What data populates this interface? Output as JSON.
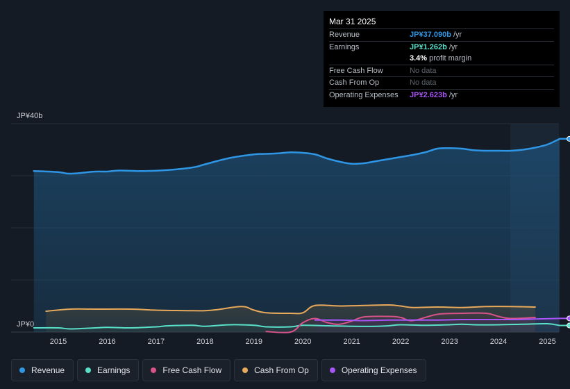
{
  "chart_data": {
    "type": "line",
    "title": "",
    "y_axis": {
      "min_label": "JP¥0",
      "max_label": "JP¥40b",
      "ylim": [
        0,
        40
      ]
    },
    "x_ticks": [
      "2015",
      "2016",
      "2017",
      "2018",
      "2019",
      "2020",
      "2021",
      "2022",
      "2023",
      "2024",
      "2025"
    ],
    "series": [
      {
        "name": "Revenue",
        "color": "#2f96e6",
        "points": [
          [
            2014.5,
            30.9
          ],
          [
            2015.0,
            30.7
          ],
          [
            2015.25,
            30.4
          ],
          [
            2015.75,
            30.8
          ],
          [
            2016.0,
            30.8
          ],
          [
            2016.25,
            31.0
          ],
          [
            2016.75,
            30.9
          ],
          [
            2017.25,
            31.1
          ],
          [
            2017.75,
            31.6
          ],
          [
            2018.0,
            32.2
          ],
          [
            2018.5,
            33.4
          ],
          [
            2019.0,
            34.1
          ],
          [
            2019.25,
            34.2
          ],
          [
            2019.5,
            34.3
          ],
          [
            2019.75,
            34.5
          ],
          [
            2020.0,
            34.4
          ],
          [
            2020.25,
            34.1
          ],
          [
            2020.5,
            33.3
          ],
          [
            2020.75,
            32.7
          ],
          [
            2021.0,
            32.3
          ],
          [
            2021.25,
            32.4
          ],
          [
            2021.5,
            32.8
          ],
          [
            2021.75,
            33.2
          ],
          [
            2022.0,
            33.6
          ],
          [
            2022.25,
            34.0
          ],
          [
            2022.5,
            34.5
          ],
          [
            2022.75,
            35.2
          ],
          [
            2023.0,
            35.3
          ],
          [
            2023.25,
            35.2
          ],
          [
            2023.5,
            34.9
          ],
          [
            2023.75,
            34.8
          ],
          [
            2024.0,
            34.8
          ],
          [
            2024.25,
            34.8
          ],
          [
            2024.5,
            35.0
          ],
          [
            2024.75,
            35.4
          ],
          [
            2025.0,
            36.0
          ],
          [
            2025.25,
            37.09
          ]
        ]
      },
      {
        "name": "Earnings",
        "color": "#59e0c9",
        "points": [
          [
            2014.5,
            0.8
          ],
          [
            2015.0,
            0.8
          ],
          [
            2015.25,
            0.6
          ],
          [
            2015.75,
            0.8
          ],
          [
            2016.0,
            0.9
          ],
          [
            2016.5,
            0.8
          ],
          [
            2017.0,
            1.0
          ],
          [
            2017.25,
            1.2
          ],
          [
            2017.75,
            1.3
          ],
          [
            2018.0,
            1.1
          ],
          [
            2018.5,
            1.4
          ],
          [
            2019.0,
            1.3
          ],
          [
            2019.25,
            1.0
          ],
          [
            2019.75,
            1.0
          ],
          [
            2020.0,
            1.3
          ],
          [
            2020.5,
            1.2
          ],
          [
            2021.0,
            1.1
          ],
          [
            2021.5,
            1.1
          ],
          [
            2021.75,
            1.2
          ],
          [
            2022.0,
            1.4
          ],
          [
            2022.5,
            1.3
          ],
          [
            2023.0,
            1.4
          ],
          [
            2023.25,
            1.5
          ],
          [
            2023.5,
            1.4
          ],
          [
            2024.0,
            1.4
          ],
          [
            2024.5,
            1.5
          ],
          [
            2025.0,
            1.6
          ],
          [
            2025.25,
            1.262
          ]
        ]
      },
      {
        "name": "Free Cash Flow",
        "color": "#d9538b",
        "points": [
          [
            2019.25,
            0.1
          ],
          [
            2019.75,
            0.0
          ],
          [
            2020.0,
            1.8
          ],
          [
            2020.25,
            2.6
          ],
          [
            2020.5,
            1.8
          ],
          [
            2020.75,
            1.5
          ],
          [
            2021.0,
            2.1
          ],
          [
            2021.25,
            2.9
          ],
          [
            2021.75,
            3.0
          ],
          [
            2022.0,
            2.8
          ],
          [
            2022.25,
            2.2
          ],
          [
            2022.75,
            3.4
          ],
          [
            2023.25,
            3.6
          ],
          [
            2023.75,
            3.6
          ],
          [
            2024.0,
            3.0
          ],
          [
            2024.25,
            2.6
          ],
          [
            2024.75,
            2.8
          ]
        ]
      },
      {
        "name": "Cash From Op",
        "color": "#e8a95a",
        "points": [
          [
            2014.75,
            4.0
          ],
          [
            2015.25,
            4.4
          ],
          [
            2015.75,
            4.4
          ],
          [
            2016.5,
            4.4
          ],
          [
            2017.0,
            4.2
          ],
          [
            2017.75,
            4.1
          ],
          [
            2018.0,
            4.1
          ],
          [
            2018.25,
            4.3
          ],
          [
            2018.75,
            4.9
          ],
          [
            2019.0,
            4.2
          ],
          [
            2019.25,
            3.7
          ],
          [
            2019.75,
            3.6
          ],
          [
            2020.0,
            3.7
          ],
          [
            2020.25,
            5.1
          ],
          [
            2020.75,
            5.0
          ],
          [
            2021.25,
            5.1
          ],
          [
            2021.75,
            5.2
          ],
          [
            2022.0,
            5.0
          ],
          [
            2022.25,
            4.7
          ],
          [
            2022.75,
            4.8
          ],
          [
            2023.25,
            4.7
          ],
          [
            2023.75,
            4.9
          ],
          [
            2024.25,
            4.9
          ],
          [
            2024.75,
            4.8
          ]
        ]
      },
      {
        "name": "Operating Expenses",
        "color": "#a855f7",
        "points": [
          [
            2020.25,
            2.3
          ],
          [
            2020.75,
            2.3
          ],
          [
            2021.25,
            2.2
          ],
          [
            2021.75,
            2.3
          ],
          [
            2022.25,
            2.3
          ],
          [
            2022.75,
            2.3
          ],
          [
            2023.25,
            2.4
          ],
          [
            2023.75,
            2.4
          ],
          [
            2024.25,
            2.4
          ],
          [
            2024.75,
            2.5
          ],
          [
            2025.25,
            2.623
          ]
        ]
      }
    ]
  },
  "tooltip": {
    "date": "Mar 31 2025",
    "rows": [
      {
        "label": "Revenue",
        "value": "JP¥37.090b",
        "unit": "/yr",
        "color": "#2f96e6"
      },
      {
        "label": "Earnings",
        "value": "JP¥1.262b",
        "unit": "/yr",
        "color": "#59e0c9"
      },
      {
        "label": "",
        "value": "3.4%",
        "unit": "profit margin",
        "color": "#ffffff"
      },
      {
        "label": "Free Cash Flow",
        "value": "No data",
        "unit": "",
        "color": ""
      },
      {
        "label": "Cash From Op",
        "value": "No data",
        "unit": "",
        "color": ""
      },
      {
        "label": "Operating Expenses",
        "value": "JP¥2.623b",
        "unit": "/yr",
        "color": "#a855f7"
      }
    ]
  },
  "legend": [
    {
      "label": "Revenue",
      "color": "#2f96e6"
    },
    {
      "label": "Earnings",
      "color": "#59e0c9"
    },
    {
      "label": "Free Cash Flow",
      "color": "#d9538b"
    },
    {
      "label": "Cash From Op",
      "color": "#e8a95a"
    },
    {
      "label": "Operating Expenses",
      "color": "#a855f7"
    }
  ]
}
